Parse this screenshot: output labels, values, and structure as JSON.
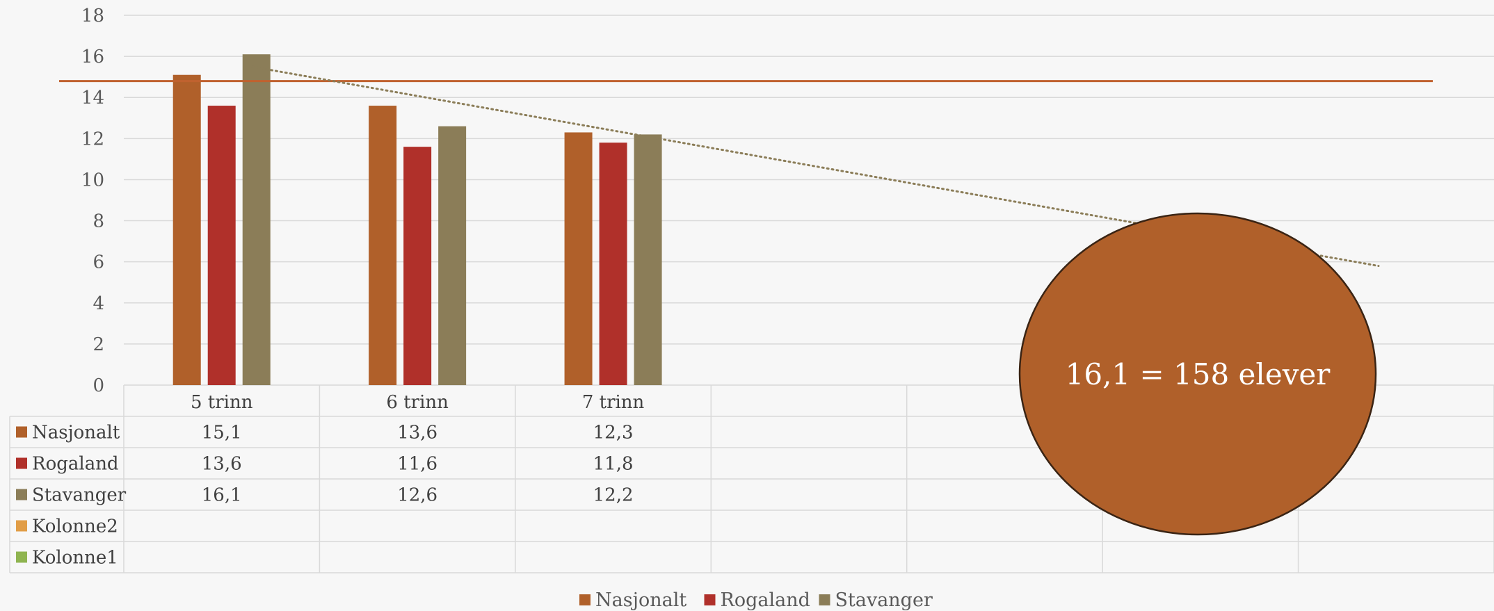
{
  "chart_data": {
    "type": "bar",
    "categories": [
      "5 trinn",
      "6 trinn",
      "7 trinn",
      "",
      "",
      "",
      ""
    ],
    "series": [
      {
        "name": "Nasjonalt",
        "color": "#b0602a",
        "values": [
          15.1,
          13.6,
          12.3,
          null,
          null,
          null,
          null
        ],
        "labels": [
          "15,1",
          "13,6",
          "12,3",
          "",
          "",
          "",
          ""
        ]
      },
      {
        "name": "Rogaland",
        "color": "#b0302a",
        "values": [
          13.6,
          11.6,
          11.8,
          null,
          null,
          null,
          null
        ],
        "labels": [
          "13,6",
          "11,6",
          "11,8",
          "",
          "",
          "",
          ""
        ]
      },
      {
        "name": "Stavanger",
        "color": "#8b7d58",
        "values": [
          16.1,
          12.6,
          12.2,
          null,
          null,
          null,
          null
        ],
        "labels": [
          "16,1",
          "12,6",
          "12,2",
          "",
          "",
          "",
          ""
        ]
      },
      {
        "name": "Kolonne2",
        "color": "#e19d46",
        "values": [
          null,
          null,
          null,
          null,
          null,
          null,
          null
        ],
        "labels": [
          "",
          "",
          "",
          "",
          "",
          "",
          ""
        ]
      },
      {
        "name": "Kolonne1",
        "color": "#8fb450",
        "values": [
          null,
          null,
          null,
          null,
          null,
          null,
          null
        ],
        "labels": [
          "",
          "",
          "",
          "",
          "",
          "",
          ""
        ]
      }
    ],
    "ylim": [
      0,
      18
    ],
    "yticks": [
      "0",
      "2",
      "4",
      "6",
      "8",
      "10",
      "12",
      "14",
      "16",
      "18"
    ],
    "reference_line": {
      "value": 14.8,
      "color": "#c0622f"
    },
    "trendline": {
      "series": "Stavanger",
      "style": "dotted",
      "color": "#8b7d58",
      "start_y": 15.5,
      "end_y": 5.8
    },
    "legend": {
      "position": "bottom",
      "entries": [
        "Nasjonalt",
        "Rogaland",
        "Stavanger"
      ]
    },
    "data_table": true,
    "grid": true
  },
  "annotation": {
    "text": "16,1 = 158 elever",
    "fill": "#b0602a",
    "stroke": "#3a2414"
  }
}
